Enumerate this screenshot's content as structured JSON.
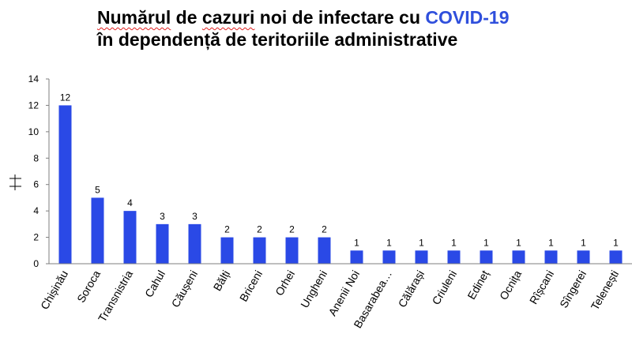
{
  "title": {
    "line1_part1": "Numărul",
    "line1_part2": " de ",
    "line1_part3": "cazuri",
    "line1_part4": " noi de infectare cu ",
    "line1_accent": "COVID-19",
    "line2": "în dependență de teritoriile administrative"
  },
  "colors": {
    "bar": "#2a49e6",
    "accent": "#2f4fdc",
    "axis": "#7f7f7f"
  },
  "chart_data": {
    "type": "bar",
    "title": "Numărul de cazuri noi de infectare cu COVID-19 în dependență de teritoriile administrative",
    "categories": [
      "Chișinău",
      "Soroca",
      "Transnistria",
      "Cahul",
      "Căușeni",
      "Bălți",
      "Briceni",
      "Orhei",
      "Ungheni",
      "Anenii Noi",
      "Basarabea…",
      "Călărași",
      "Criuleni",
      "Edineț",
      "Ocnița",
      "Rîșcani",
      "Sîngerei",
      "Telenești"
    ],
    "values": [
      12,
      5,
      4,
      3,
      3,
      2,
      2,
      2,
      2,
      1,
      1,
      1,
      1,
      1,
      1,
      1,
      1,
      1
    ],
    "data_labels": [
      "12",
      "5",
      "4",
      "3",
      "3",
      "2",
      "2",
      "2",
      "2",
      "1",
      "1",
      "1",
      "1",
      "1",
      "1",
      "1",
      "1",
      "1"
    ],
    "ylim": [
      0,
      14
    ],
    "yticks": [
      "0",
      "2",
      "4",
      "6",
      "8",
      "10",
      "12",
      "14"
    ],
    "ylabel": "",
    "xlabel": "",
    "grid": false,
    "legend": "none"
  }
}
